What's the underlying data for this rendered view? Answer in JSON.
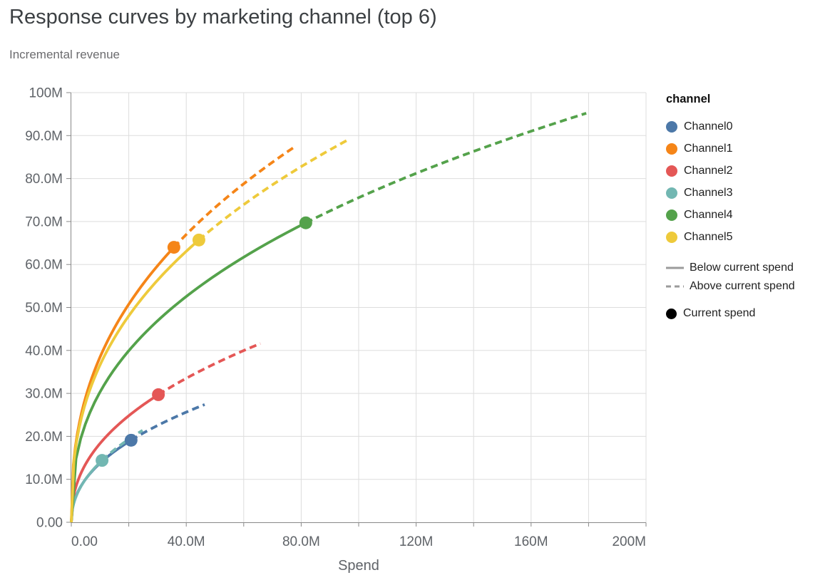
{
  "header": {
    "title": "Response curves by marketing channel (top 6)",
    "subtitle": "Incremental revenue"
  },
  "chart_data": {
    "type": "line",
    "title": "Response curves by marketing channel (top 6)",
    "subtitle": "Incremental revenue",
    "xlabel": "Spend",
    "ylabel": "Incremental revenue",
    "units": "millions",
    "xlim_m": [
      0,
      200
    ],
    "ylim_m": [
      0,
      100
    ],
    "x_grid_step_m": 20,
    "y_grid_step_m": 10,
    "x_tick_labels": [
      {
        "m": 0,
        "label": "0.00"
      },
      {
        "m": 40,
        "label": "40.0M"
      },
      {
        "m": 80,
        "label": "80.0M"
      },
      {
        "m": 120,
        "label": "120M"
      },
      {
        "m": 160,
        "label": "160M"
      },
      {
        "m": 200,
        "label": "200M"
      }
    ],
    "y_tick_labels": [
      {
        "m": 0,
        "label": "0.00"
      },
      {
        "m": 10,
        "label": "10.0M"
      },
      {
        "m": 20,
        "label": "20.0M"
      },
      {
        "m": 30,
        "label": "30.0M"
      },
      {
        "m": 40,
        "label": "40.0M"
      },
      {
        "m": 50,
        "label": "50.0M"
      },
      {
        "m": 60,
        "label": "60.0M"
      },
      {
        "m": 70,
        "label": "70.0M"
      },
      {
        "m": 80,
        "label": "80.0M"
      },
      {
        "m": 90,
        "label": "90.0M"
      },
      {
        "m": 100,
        "label": "100M"
      }
    ],
    "series": [
      {
        "name": "Channel0",
        "color": "#4c78a8",
        "current_spend_m": 20.8,
        "current_revenue_m": 19.1,
        "max_spend_m": 46.4,
        "max_revenue_m": 27.4
      },
      {
        "name": "Channel1",
        "color": "#f58518",
        "current_spend_m": 35.7,
        "current_revenue_m": 64.0,
        "max_spend_m": 78.2,
        "max_revenue_m": 87.6
      },
      {
        "name": "Channel2",
        "color": "#e45756",
        "current_spend_m": 30.3,
        "current_revenue_m": 29.7,
        "max_spend_m": 65.8,
        "max_revenue_m": 41.6
      },
      {
        "name": "Channel3",
        "color": "#72b7b2",
        "current_spend_m": 10.7,
        "current_revenue_m": 14.4,
        "max_spend_m": 24.8,
        "max_revenue_m": 21.4
      },
      {
        "name": "Channel4",
        "color": "#54a24b",
        "current_spend_m": 81.6,
        "current_revenue_m": 69.7,
        "max_spend_m": 179.2,
        "max_revenue_m": 95.2
      },
      {
        "name": "Channel5",
        "color": "#eeca3b",
        "current_spend_m": 44.4,
        "current_revenue_m": 65.7,
        "max_spend_m": 96.8,
        "max_revenue_m": 89.2
      }
    ],
    "legend": {
      "title": "channel",
      "line_styles": [
        {
          "label": "Below current spend",
          "style": "solid"
        },
        {
          "label": "Above current spend",
          "style": "dashed"
        }
      ],
      "point_label": "Current spend"
    },
    "colors": {
      "grid": "#dddddd",
      "axis": "#888888",
      "title_text": "#3c4043",
      "subtitle_text": "#6b6b6e",
      "tick_text": "#5f6368",
      "legend_text": "#1f1f1f",
      "legend_line": "#9b9b9b",
      "legend_point": "#000000"
    },
    "legend_position": "right",
    "grid": true
  }
}
